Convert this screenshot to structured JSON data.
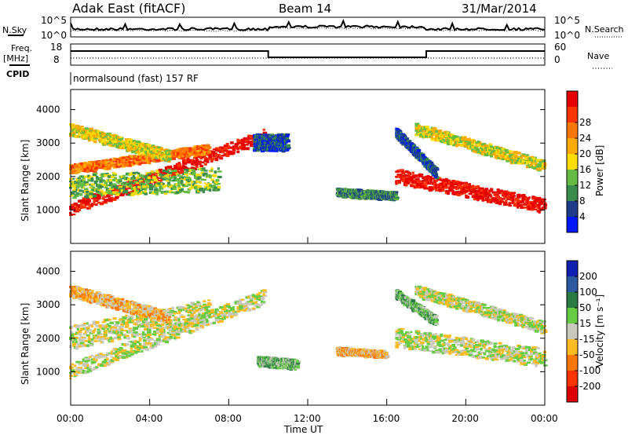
{
  "header": {
    "radar": "Adak East (fitACF)",
    "beam": "Beam 14",
    "date": "31/Mar/2014"
  },
  "top_panel": {
    "left_label": "N.Sky",
    "right_label": "N.Search",
    "left_ticks": [
      "10^5",
      "10^0"
    ],
    "right_ticks": [
      "10^5",
      "10^0"
    ]
  },
  "freq_panel": {
    "left_label_1": "Freq.",
    "left_label_2": "[MHz]",
    "cpid_label": "CPID",
    "right_label": "Nave",
    "left_ticks": [
      "18",
      "8"
    ],
    "right_ticks": [
      "60",
      "0"
    ],
    "cpid_text": "normalsound (fast) 157 RF"
  },
  "colors": {
    "power": [
      "#0018ff",
      "#1f3c8c",
      "#3a8c4c",
      "#66bb44",
      "#ffdd00",
      "#ffaa00",
      "#ff7700",
      "#ff3300",
      "#e80000"
    ],
    "velocity": [
      "#1020b0",
      "#2c5aa0",
      "#2a7a44",
      "#66cc44",
      "#c8c8bc",
      "#ffbb22",
      "#ff7700",
      "#ff3300",
      "#dd0000"
    ]
  },
  "chart_data": [
    {
      "type": "heatmap",
      "name": "power",
      "ylabel": "Slant Range [km]",
      "ylim": [
        0,
        4600
      ],
      "yticks": [
        "1000",
        "2000",
        "3000",
        "4000"
      ],
      "xlim": [
        0,
        24
      ],
      "colorbar_label": "Power [dB]",
      "colorbar_ticks": [
        "4",
        "8",
        "12",
        "16",
        "20",
        "24",
        "28"
      ],
      "bands": [
        {
          "t0": 0,
          "t1": 9.8,
          "r_start": 1000,
          "r_end": 3200,
          "width": 260,
          "level": 8
        },
        {
          "t0": 0,
          "t1": 7.0,
          "r_start": 2200,
          "r_end": 2800,
          "width": 200,
          "level": 6
        },
        {
          "t0": 0,
          "t1": 7.5,
          "r_start": 1700,
          "r_end": 1900,
          "width": 500,
          "level": 3
        },
        {
          "t0": 0,
          "t1": 5.0,
          "r_start": 3400,
          "r_end": 2600,
          "width": 250,
          "level": 4
        },
        {
          "t0": 9.3,
          "t1": 11.0,
          "r_start": 3000,
          "r_end": 3000,
          "width": 350,
          "level": 1
        },
        {
          "t0": 13.5,
          "t1": 16.5,
          "r_start": 1500,
          "r_end": 1400,
          "width": 180,
          "level": 2
        },
        {
          "t0": 16.5,
          "t1": 24,
          "r_start": 2000,
          "r_end": 1100,
          "width": 300,
          "level": 8
        },
        {
          "t0": 17.5,
          "t1": 24,
          "r_start": 3400,
          "r_end": 2300,
          "width": 250,
          "level": 4
        },
        {
          "t0": 16.5,
          "t1": 18.5,
          "r_start": 3300,
          "r_end": 2100,
          "width": 200,
          "level": 1
        }
      ]
    },
    {
      "type": "heatmap",
      "name": "velocity",
      "xlabel": "Time UT",
      "ylabel": "Slant Range [km]",
      "ylim": [
        0,
        4600
      ],
      "yticks": [
        "1000",
        "2000",
        "3000",
        "4000"
      ],
      "xlim": [
        0,
        24
      ],
      "xticks": [
        "00:00",
        "04:00",
        "08:00",
        "12:00",
        "16:00",
        "20:00",
        "00:00"
      ],
      "colorbar_label": "Velocity [m s⁻¹]",
      "colorbar_ticks": [
        "200",
        "100",
        "50",
        "15",
        "-15",
        "-50",
        "-100",
        "-200"
      ],
      "bands": [
        {
          "t0": 0,
          "t1": 9.8,
          "r_start": 1000,
          "r_end": 3200,
          "width": 320,
          "level": 4
        },
        {
          "t0": 0,
          "t1": 7.0,
          "r_start": 2000,
          "r_end": 2800,
          "width": 500,
          "level": 4
        },
        {
          "t0": 0,
          "t1": 5.0,
          "r_start": 3400,
          "r_end": 2600,
          "width": 250,
          "level": 5
        },
        {
          "t0": 9.5,
          "t1": 11.5,
          "r_start": 1300,
          "r_end": 1200,
          "width": 200,
          "level": 3
        },
        {
          "t0": 13.5,
          "t1": 16.0,
          "r_start": 1600,
          "r_end": 1500,
          "width": 150,
          "level": 5
        },
        {
          "t0": 16.5,
          "t1": 24,
          "r_start": 2000,
          "r_end": 1400,
          "width": 400,
          "level": 4
        },
        {
          "t0": 17.5,
          "t1": 24,
          "r_start": 3400,
          "r_end": 2300,
          "width": 250,
          "level": 4
        },
        {
          "t0": 16.5,
          "t1": 18.5,
          "r_start": 3300,
          "r_end": 2500,
          "width": 200,
          "level": 3
        }
      ]
    }
  ]
}
